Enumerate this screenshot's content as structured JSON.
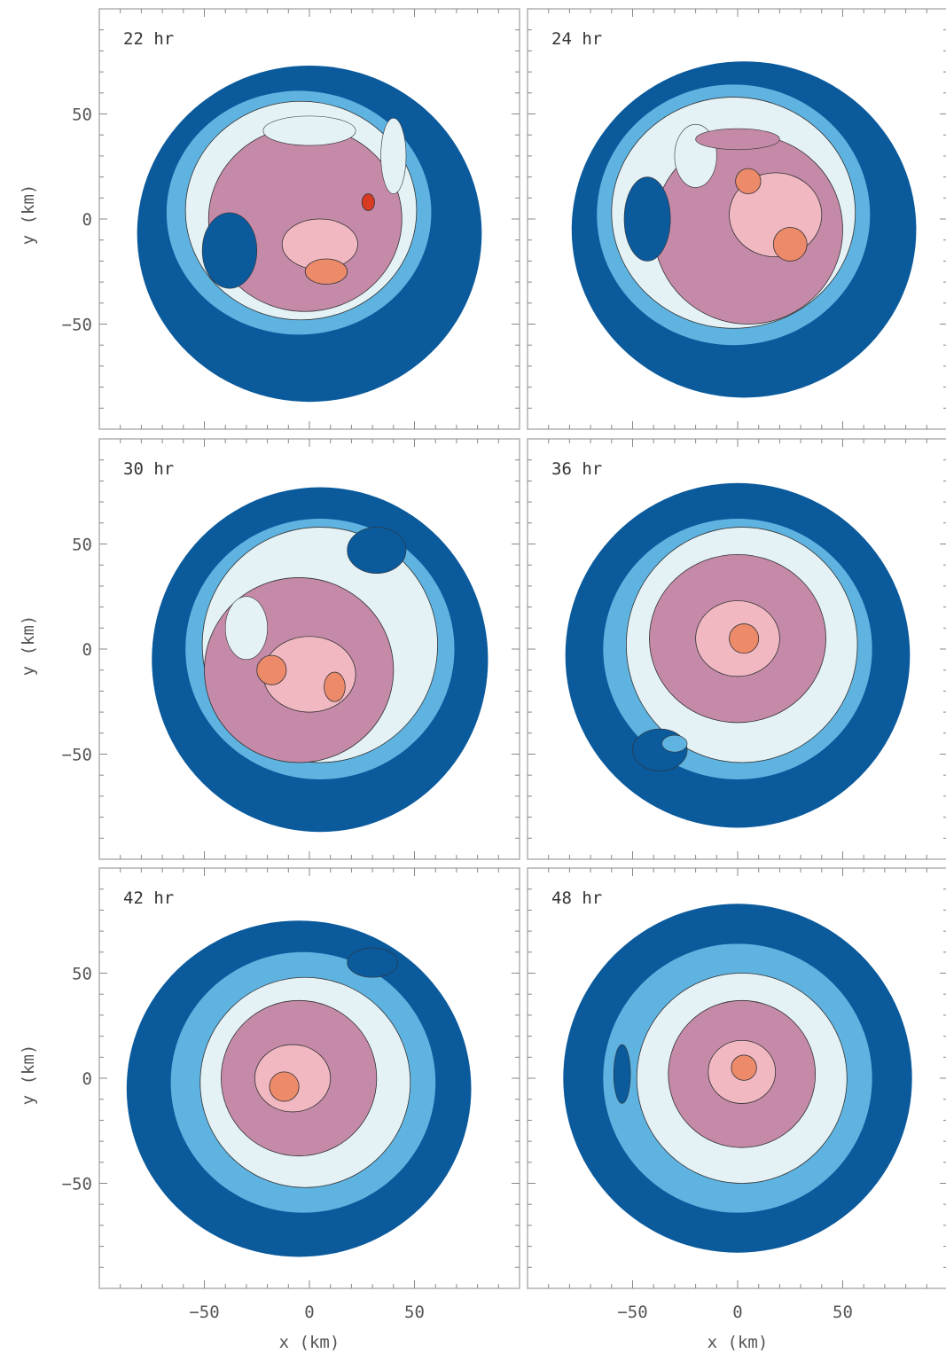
{
  "chart_data": {
    "type": "heatmap",
    "description_kind": "filled-contour panels",
    "xlabel": "x (km)",
    "ylabel": "y (km)",
    "xlim": [
      -100,
      100
    ],
    "ylim": [
      -100,
      100
    ],
    "x_ticks": [
      -50,
      0,
      50
    ],
    "y_ticks": [
      50,
      0,
      -50
    ],
    "x_tick_labels": [
      "−50",
      "0",
      "50"
    ],
    "y_tick_labels": [
      "50",
      "0",
      "−50"
    ],
    "colors": {
      "level1": "#0a5a9c",
      "level2": "#5fb3e0",
      "level3": "#e4f1f5",
      "level4": "#c48aa8",
      "level5": "#f1b8c2",
      "level6": "#ec8a6a",
      "level7": "#d93a22",
      "background": "#ffffff",
      "frame": "#b0b0b0",
      "contour_line": "#333333"
    },
    "panels": [
      {
        "label": "22 hr",
        "levels": [
          {
            "color": "level1",
            "cx": 0,
            "cy": -7,
            "rx": 82,
            "ry": 80
          },
          {
            "color": "level2",
            "cx": -5,
            "cy": 3,
            "rx": 63,
            "ry": 58
          },
          {
            "color": "level3",
            "cx": -4,
            "cy": 4,
            "rx": 55,
            "ry": 52
          },
          {
            "color": "level4",
            "cx": -2,
            "cy": 0,
            "rx": 46,
            "ry": 44
          },
          {
            "color": "level5",
            "cx": 5,
            "cy": -12,
            "rx": 18,
            "ry": 12
          },
          {
            "color": "level6",
            "cx": 8,
            "cy": -25,
            "rx": 10,
            "ry": 6
          },
          {
            "color": "level7",
            "cx": 28,
            "cy": 8,
            "rx": 3,
            "ry": 4
          }
        ],
        "spots": [
          {
            "color": "level1",
            "cx": -38,
            "cy": -15,
            "rx": 13,
            "ry": 18
          },
          {
            "color": "level3",
            "cx": 0,
            "cy": 42,
            "rx": 22,
            "ry": 7
          },
          {
            "color": "level3",
            "cx": 40,
            "cy": 30,
            "rx": 6,
            "ry": 18
          }
        ]
      },
      {
        "label": "24 hr",
        "levels": [
          {
            "color": "level1",
            "cx": 3,
            "cy": -5,
            "rx": 82,
            "ry": 80
          },
          {
            "color": "level2",
            "cx": -2,
            "cy": 2,
            "rx": 65,
            "ry": 62
          },
          {
            "color": "level3",
            "cx": -2,
            "cy": 3,
            "rx": 58,
            "ry": 55
          },
          {
            "color": "level4",
            "cx": 5,
            "cy": -5,
            "rx": 45,
            "ry": 45
          },
          {
            "color": "level5",
            "cx": 18,
            "cy": 2,
            "rx": 22,
            "ry": 20
          },
          {
            "color": "level6",
            "cx": 25,
            "cy": -12,
            "rx": 8,
            "ry": 8
          },
          {
            "color": "level6",
            "cx": 5,
            "cy": 18,
            "rx": 6,
            "ry": 6
          }
        ],
        "spots": [
          {
            "color": "level1",
            "cx": -43,
            "cy": 0,
            "rx": 11,
            "ry": 20
          },
          {
            "color": "level3",
            "cx": -20,
            "cy": 30,
            "rx": 10,
            "ry": 15
          },
          {
            "color": "level4",
            "cx": 0,
            "cy": 38,
            "rx": 20,
            "ry": 5
          }
        ]
      },
      {
        "label": "30 hr",
        "levels": [
          {
            "color": "level1",
            "cx": 5,
            "cy": -5,
            "rx": 80,
            "ry": 82
          },
          {
            "color": "level2",
            "cx": 5,
            "cy": 0,
            "rx": 64,
            "ry": 62
          },
          {
            "color": "level3",
            "cx": 5,
            "cy": 2,
            "rx": 56,
            "ry": 56
          },
          {
            "color": "level4",
            "cx": -5,
            "cy": -10,
            "rx": 45,
            "ry": 44
          },
          {
            "color": "level5",
            "cx": 0,
            "cy": -12,
            "rx": 22,
            "ry": 18
          },
          {
            "color": "level6",
            "cx": -18,
            "cy": -10,
            "rx": 7,
            "ry": 7
          },
          {
            "color": "level6",
            "cx": 12,
            "cy": -18,
            "rx": 5,
            "ry": 7
          }
        ],
        "spots": [
          {
            "color": "level1",
            "cx": 32,
            "cy": 47,
            "rx": 14,
            "ry": 11
          },
          {
            "color": "level3",
            "cx": -30,
            "cy": 10,
            "rx": 10,
            "ry": 15
          }
        ]
      },
      {
        "label": "36 hr",
        "levels": [
          {
            "color": "level1",
            "cx": 0,
            "cy": -3,
            "rx": 82,
            "ry": 82
          },
          {
            "color": "level2",
            "cx": 0,
            "cy": 0,
            "rx": 64,
            "ry": 62
          },
          {
            "color": "level3",
            "cx": 2,
            "cy": 2,
            "rx": 55,
            "ry": 56
          },
          {
            "color": "level4",
            "cx": 0,
            "cy": 5,
            "rx": 42,
            "ry": 40
          },
          {
            "color": "level5",
            "cx": 0,
            "cy": 5,
            "rx": 20,
            "ry": 18
          },
          {
            "color": "level6",
            "cx": 3,
            "cy": 5,
            "rx": 7,
            "ry": 7
          }
        ],
        "spots": [
          {
            "color": "level1",
            "cx": -37,
            "cy": -48,
            "rx": 13,
            "ry": 10
          },
          {
            "color": "level2",
            "cx": -30,
            "cy": -45,
            "rx": 6,
            "ry": 4
          }
        ]
      },
      {
        "label": "42 hr",
        "levels": [
          {
            "color": "level1",
            "cx": -5,
            "cy": -5,
            "rx": 82,
            "ry": 80
          },
          {
            "color": "level2",
            "cx": -3,
            "cy": -2,
            "rx": 63,
            "ry": 62
          },
          {
            "color": "level3",
            "cx": -2,
            "cy": -2,
            "rx": 50,
            "ry": 50
          },
          {
            "color": "level4",
            "cx": -5,
            "cy": 0,
            "rx": 37,
            "ry": 37
          },
          {
            "color": "level5",
            "cx": -8,
            "cy": 0,
            "rx": 18,
            "ry": 16
          },
          {
            "color": "level6",
            "cx": -12,
            "cy": -4,
            "rx": 7,
            "ry": 7
          }
        ],
        "spots": [
          {
            "color": "level1",
            "cx": 30,
            "cy": 55,
            "rx": 12,
            "ry": 7
          }
        ]
      },
      {
        "label": "48 hr",
        "levels": [
          {
            "color": "level1",
            "cx": 0,
            "cy": 0,
            "rx": 83,
            "ry": 83
          },
          {
            "color": "level2",
            "cx": 0,
            "cy": 0,
            "rx": 64,
            "ry": 64
          },
          {
            "color": "level3",
            "cx": 2,
            "cy": 0,
            "rx": 50,
            "ry": 50
          },
          {
            "color": "level4",
            "cx": 2,
            "cy": 2,
            "rx": 35,
            "ry": 35
          },
          {
            "color": "level5",
            "cx": 2,
            "cy": 3,
            "rx": 16,
            "ry": 15
          },
          {
            "color": "level6",
            "cx": 3,
            "cy": 5,
            "rx": 6,
            "ry": 6
          }
        ],
        "spots": [
          {
            "color": "level1",
            "cx": -55,
            "cy": 2,
            "rx": 4,
            "ry": 14
          }
        ]
      }
    ]
  }
}
